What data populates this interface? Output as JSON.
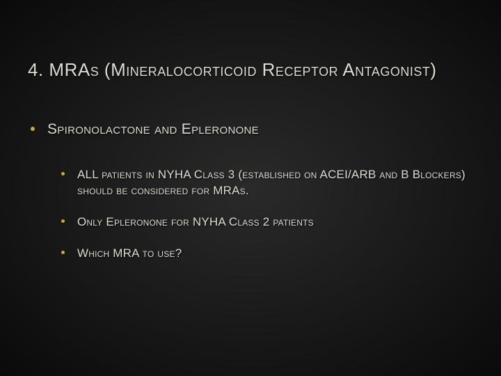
{
  "title_prefix": "4. ",
  "title_main": "MRAs (Mineralocorticoid Receptor Antagonist)",
  "level1": {
    "item1": "Spironolactone and Epleronone"
  },
  "level2": {
    "item1": "ALL patients in NYHA Class 3 (established on ACEI/ARB and B Blockers) should be considered for MRAs.",
    "item2": "Only Epleronone for NYHA Class 2 patients",
    "item3": "Which MRA to use?"
  },
  "colors": {
    "bullet": "#c9a94a",
    "text": "#dcdcd2",
    "bg_center": "#2a2a2a",
    "bg_edge": "#0a0a0a"
  },
  "fontsizes": {
    "title": 26,
    "l1": 21,
    "l2": 17
  }
}
